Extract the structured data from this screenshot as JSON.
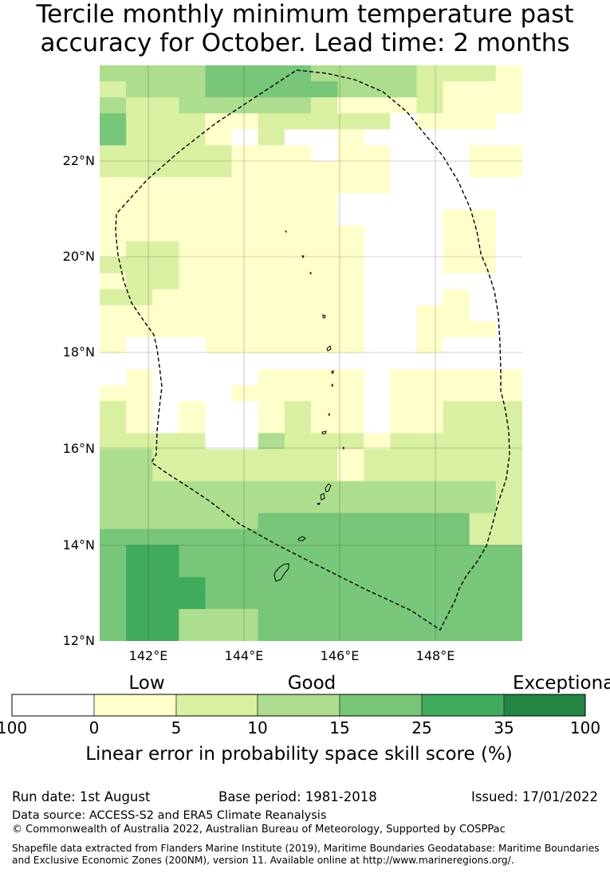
{
  "title": {
    "line1": "Tercile monthly minimum temperature past",
    "line2": "accuracy for October. Lead time: 2 months"
  },
  "axes": {
    "lon_ticks": [
      "142°E",
      "144°E",
      "146°E",
      "148°E"
    ],
    "lat_ticks": [
      "12°N",
      "14°N",
      "16°N",
      "18°N",
      "20°N",
      "22°N"
    ]
  },
  "colorbar": {
    "category_labels": [
      "Low",
      "Good",
      "Exceptional"
    ],
    "boundaries": [
      "100",
      "0",
      "5",
      "10",
      "15",
      "25",
      "35",
      "100"
    ],
    "colors": [
      "#ffffff",
      "#ffffcc",
      "#d9f0a3",
      "#addd8e",
      "#78c679",
      "#41ab5d",
      "#238443"
    ],
    "label": "Linear error in probability space skill score (%)"
  },
  "footer": {
    "run_date": "Run date: 1st August",
    "base_period": "Base period: 1981-2018",
    "issued": "Issued: 17/01/2022",
    "data_source": "Data source: ACCESS-S2 and ERA5 Climate Reanalysis",
    "copyright": "© Commonwealth of Australia 2022, Australian Bureau of Meteorology, Supported by COSPPac",
    "shapefile_note": "Shapefile data extracted from Flanders Marine Institute (2019), Maritime Boundaries Geodatabase: Maritime Boundaries and Exclusive Economic Zones (200NM), version 11. Available online at http://www.marineregions.org/."
  },
  "map_data": {
    "lon_range": [
      141,
      149.8
    ],
    "lat_range": [
      12,
      24
    ],
    "category_grid": [
      "3333444433332221",
      "2333444443332111",
      "3223333321112111",
      "4222112222201110",
      "4222102001000000",
      "2222211101100011",
      "2222211111100011",
      "1111111111100000",
      "1111111110000000",
      "1111111110000110",
      "1111111111000110",
      "1221111111000110",
      "2221111111000110",
      "1221111111000000",
      "2211111111000100",
      "1111111111001100",
      "1111111111001110",
      "1000111111001000",
      "0000000000000000",
      "0100001111011111",
      "1100011111011111",
      "2101001211011222",
      "2101001211011222",
      "2222003222122222",
      "3322222221222222",
      "3322222221222222",
      "3333333333333332",
      "3333333333333332",
      "3333334444444422",
      "4444444444444422",
      "4554444444444444",
      "4554444444444444",
      "4555444444444444",
      "4555444444444444",
      "4553334444444444",
      "4553334444444444"
    ]
  }
}
